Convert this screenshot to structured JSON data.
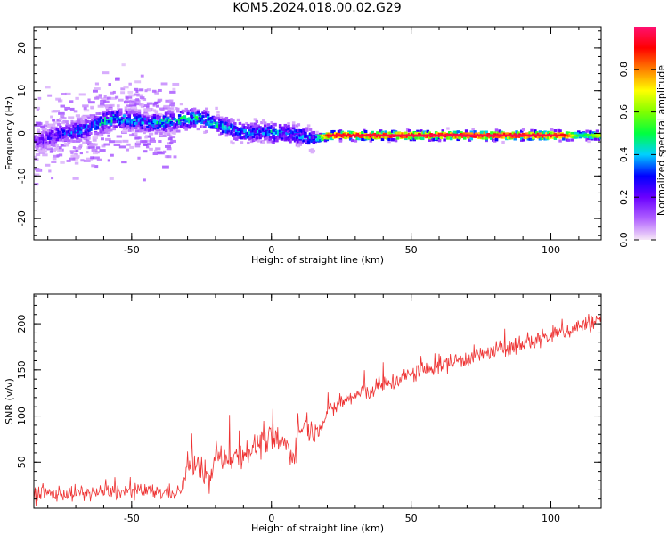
{
  "title": "KOM5.2024.018.00.02.G29",
  "chart_data": [
    {
      "type": "heatmap",
      "xlabel": "Height of straight line (km)",
      "ylabel": "Frequency (Hz)",
      "xlim": [
        -85,
        118
      ],
      "ylim": [
        -25,
        25
      ],
      "x_ticks": [
        -50,
        0,
        50,
        100
      ],
      "y_ticks": [
        -20,
        -10,
        0,
        10,
        20
      ],
      "colorbar": {
        "label": "Normalized spectral amplitude",
        "range": [
          0,
          1
        ],
        "ticks": [
          0.0,
          0.2,
          0.4,
          0.6,
          0.8
        ],
        "tick_labels": [
          "0.0",
          "0.2",
          "0.4",
          "0.6",
          "0.8"
        ],
        "colormap": "rainbow",
        "colors": [
          "#f7e8f7",
          "#b060ff",
          "#6a00ff",
          "#0000ff",
          "#00d0ff",
          "#00ff40",
          "#80ff00",
          "#ffff00",
          "#ff8000",
          "#ff0000",
          "#ff1070"
        ]
      },
      "ridge": {
        "x": [
          -85,
          -80,
          -75,
          -70,
          -65,
          -60,
          -55,
          -50,
          -45,
          -40,
          -35,
          -30,
          -25,
          -20,
          -15,
          -10,
          -5,
          0,
          5,
          10,
          15,
          20,
          30,
          40,
          50,
          60,
          70,
          80,
          90,
          100,
          105,
          110,
          118
        ],
        "frequency": [
          -2,
          -1,
          0,
          0.5,
          1.5,
          3,
          3.5,
          3,
          2.5,
          2.5,
          3,
          3.5,
          3.5,
          2,
          1,
          0,
          0.5,
          0,
          0,
          -0.5,
          -1.5,
          -0.5,
          -0.5,
          -0.5,
          -0.5,
          -0.5,
          -0.5,
          -0.5,
          -0.5,
          -0.5,
          -0.5,
          -0.5,
          -0.5
        ],
        "amplitude": [
          0.15,
          0.2,
          0.25,
          0.3,
          0.3,
          0.35,
          0.35,
          0.3,
          0.3,
          0.35,
          0.35,
          0.4,
          0.35,
          0.35,
          0.3,
          0.3,
          0.3,
          0.35,
          0.3,
          0.3,
          0.3,
          0.95,
          0.95,
          0.97,
          0.97,
          0.97,
          0.97,
          0.97,
          0.97,
          0.97,
          0.9,
          0.45,
          0.7
        ]
      }
    },
    {
      "type": "line",
      "xlabel": "Height of straight line (km)",
      "ylabel": "SNR (v/v)",
      "xlim": [
        -85,
        118
      ],
      "ylim": [
        0,
        232
      ],
      "x_ticks": [
        -50,
        0,
        50,
        100
      ],
      "y_ticks": [
        50,
        100,
        150,
        200
      ],
      "color": "#ee3333",
      "series": [
        {
          "x": [
            -85,
            -75,
            -65,
            -55,
            -45,
            -35,
            -32,
            -30,
            -28,
            -25,
            -22,
            -20,
            -15,
            -10,
            -5,
            0,
            5,
            8,
            10,
            12,
            15,
            20,
            25,
            30,
            40,
            50,
            60,
            70,
            80,
            90,
            100,
            110,
            118
          ],
          "values": [
            15,
            16,
            17,
            18,
            18,
            17,
            20,
            45,
            50,
            40,
            30,
            55,
            55,
            60,
            68,
            75,
            68,
            58,
            80,
            95,
            80,
            102,
            115,
            122,
            133,
            145,
            155,
            163,
            170,
            178,
            187,
            197,
            205
          ]
        }
      ]
    }
  ]
}
